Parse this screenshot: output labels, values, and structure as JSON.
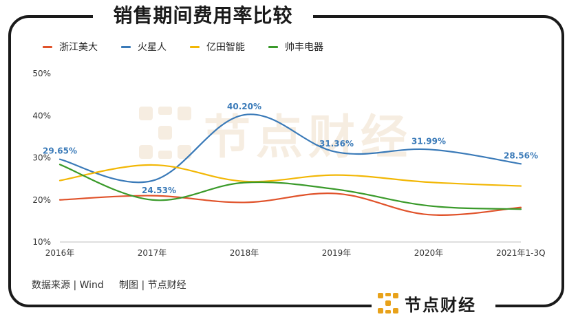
{
  "title": "销售期间费用率比较",
  "source_text": "数据来源 | Wind     制图 | 节点财经",
  "watermark_text": "节点财经",
  "footer_brand": "节点财经",
  "chart_data": {
    "type": "line",
    "title": "销售期间费用率比较",
    "categories": [
      "2016年",
      "2017年",
      "2018年",
      "2019年",
      "2020年",
      "2021年1-3Q"
    ],
    "y_ticks": [
      "10%",
      "20%",
      "30%",
      "40%",
      "50%"
    ],
    "ylim": [
      10,
      50
    ],
    "legend_position": "top-left",
    "series": [
      {
        "name": "浙江美大",
        "color": "#e0522a",
        "values": [
          20.0,
          21.0,
          19.4,
          21.5,
          16.5,
          18.2
        ]
      },
      {
        "name": "火星人",
        "color": "#3a7ab8",
        "values": [
          29.65,
          24.53,
          40.2,
          31.36,
          31.99,
          28.56
        ],
        "labels": [
          "29.65%",
          "24.53%",
          "40.20%",
          "31.36%",
          "31.99%",
          "28.56%"
        ]
      },
      {
        "name": "亿田智能",
        "color": "#f2b705",
        "values": [
          24.6,
          28.3,
          24.4,
          25.9,
          24.2,
          23.3
        ]
      },
      {
        "name": "帅丰电器",
        "color": "#3a9a2a",
        "values": [
          28.4,
          20.0,
          24.1,
          22.5,
          18.6,
          17.8
        ]
      }
    ]
  }
}
